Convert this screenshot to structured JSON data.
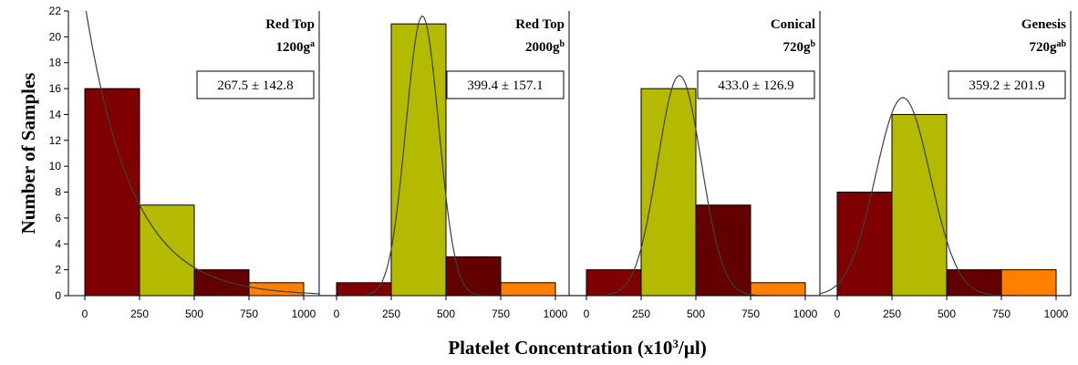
{
  "chart_data": {
    "type": "bar",
    "ylabel": "Number of Samples",
    "xlabel_pre": "Platelet Concentration (x10",
    "xlabel_sup": "3",
    "xlabel_post": "/µl)",
    "ylim": [
      0,
      22
    ],
    "yticks": [
      0,
      2,
      4,
      6,
      8,
      10,
      12,
      14,
      16,
      18,
      20,
      22
    ],
    "xlim": [
      0,
      1000
    ],
    "xticks": [
      0,
      250,
      500,
      750,
      1000
    ],
    "bin_edges": [
      0,
      250,
      500,
      750,
      1000
    ],
    "bin_colors": [
      "#7f0000",
      "#b3ba00",
      "#620000",
      "#ff7f00"
    ],
    "curve_color": "#404040",
    "panels": [
      {
        "title_line1": "Red Top",
        "title_line2": "1200g",
        "title_sup": "a",
        "stat": "267.5 ± 142.8",
        "values": [
          16,
          7,
          2,
          1
        ],
        "curve": {
          "shape": "exponential",
          "y0": 22.6,
          "decay": 0.00468
        }
      },
      {
        "title_line1": "Red Top",
        "title_line2": "2000g",
        "title_sup": "b",
        "stat": "399.4 ± 157.1",
        "values": [
          1,
          21,
          3,
          1
        ],
        "curve": {
          "shape": "gaussian",
          "mean": 392,
          "sd": 75,
          "peak": 21.6
        }
      },
      {
        "title_line1": "Conical",
        "title_line2": "720g",
        "title_sup": "b",
        "stat": "433.0 ± 126.9",
        "values": [
          2,
          16,
          7,
          1
        ],
        "curve": {
          "shape": "gaussian",
          "mean": 425,
          "sd": 100,
          "peak": 17
        }
      },
      {
        "title_line1": "Genesis",
        "title_line2": "720g",
        "title_sup": "ab",
        "stat": "359.2 ± 201.9",
        "values": [
          8,
          14,
          2,
          2
        ],
        "curve": {
          "shape": "gaussian",
          "mean": 300,
          "sd": 125,
          "peak": 15.3
        }
      }
    ]
  }
}
